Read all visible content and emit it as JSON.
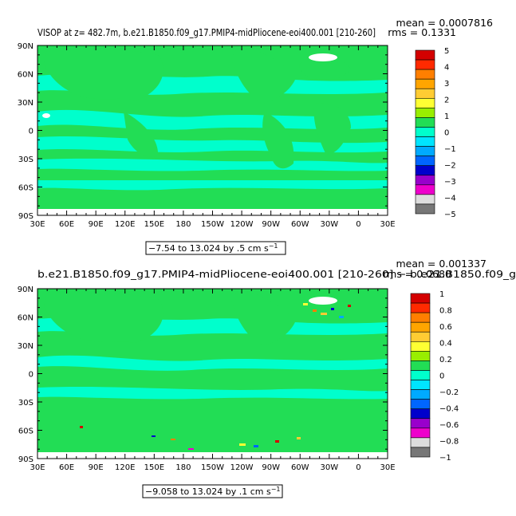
{
  "chart_data": [
    {
      "type": "heatmap",
      "title": "VISOP at z= 482.7m, b.e21.B1850.f09_g17.PMIP4-midPliocene-eoi400.001 [210-260]",
      "stat_mean": "mean = 0.0007816",
      "stat_rms": "rms = 0.1331",
      "x_ticks": [
        "30E",
        "60E",
        "90E",
        "120E",
        "150E",
        "180",
        "150W",
        "120W",
        "90W",
        "60W",
        "30W",
        "0",
        "30E"
      ],
      "y_ticks": [
        "90N",
        "60N",
        "30N",
        "0",
        "30S",
        "60S",
        "90S"
      ],
      "x_range": [
        30,
        390
      ],
      "y_range": [
        -90,
        90
      ],
      "colorbar_labels": [
        "5",
        "4",
        "3",
        "2",
        "1",
        "0",
        "−1",
        "−2",
        "−3",
        "−4",
        "−5"
      ],
      "colorbar_colors": [
        "#d40000",
        "#ff2a00",
        "#ff7f00",
        "#ffa500",
        "#ffcc33",
        "#ffff33",
        "#99ee00",
        "#22dd55",
        "#00ffcc",
        "#00e5ff",
        "#00aaff",
        "#0066ff",
        "#0000cc",
        "#9900cc",
        "#ee00cc",
        "#dddddd",
        "#777777"
      ],
      "range_text": "−7.54 to 13.024 by .5 cm s",
      "range_sup": "−1"
    },
    {
      "type": "heatmap",
      "title": "b.e21.B1850.f09_g17.PMIP4-midPliocene-eoi400.001 [210-260] − b.e21.B1850.f09_g",
      "stat_mean": "mean = 0.001337",
      "stat_rms": "rms = 0.0680",
      "x_ticks": [
        "30E",
        "60E",
        "90E",
        "120E",
        "150E",
        "180",
        "150W",
        "120W",
        "90W",
        "60W",
        "30W",
        "0",
        "30E"
      ],
      "y_ticks": [
        "90N",
        "60N",
        "30N",
        "0",
        "30S",
        "60S",
        "90S"
      ],
      "x_range": [
        30,
        390
      ],
      "y_range": [
        -90,
        90
      ],
      "colorbar_labels": [
        "1",
        "0.8",
        "0.6",
        "0.4",
        "0.2",
        "0",
        "−0.2",
        "−0.4",
        "−0.6",
        "−0.8",
        "−1"
      ],
      "colorbar_colors": [
        "#d40000",
        "#ff2a00",
        "#ff7f00",
        "#ffa500",
        "#ffcc33",
        "#ffff33",
        "#99ee00",
        "#22dd55",
        "#00ffcc",
        "#00e5ff",
        "#00aaff",
        "#0066ff",
        "#0000cc",
        "#9900cc",
        "#ee00cc",
        "#dddddd",
        "#777777"
      ],
      "range_text": "−9.058 to 13.024 by .1 cm s",
      "range_sup": "−1"
    }
  ]
}
